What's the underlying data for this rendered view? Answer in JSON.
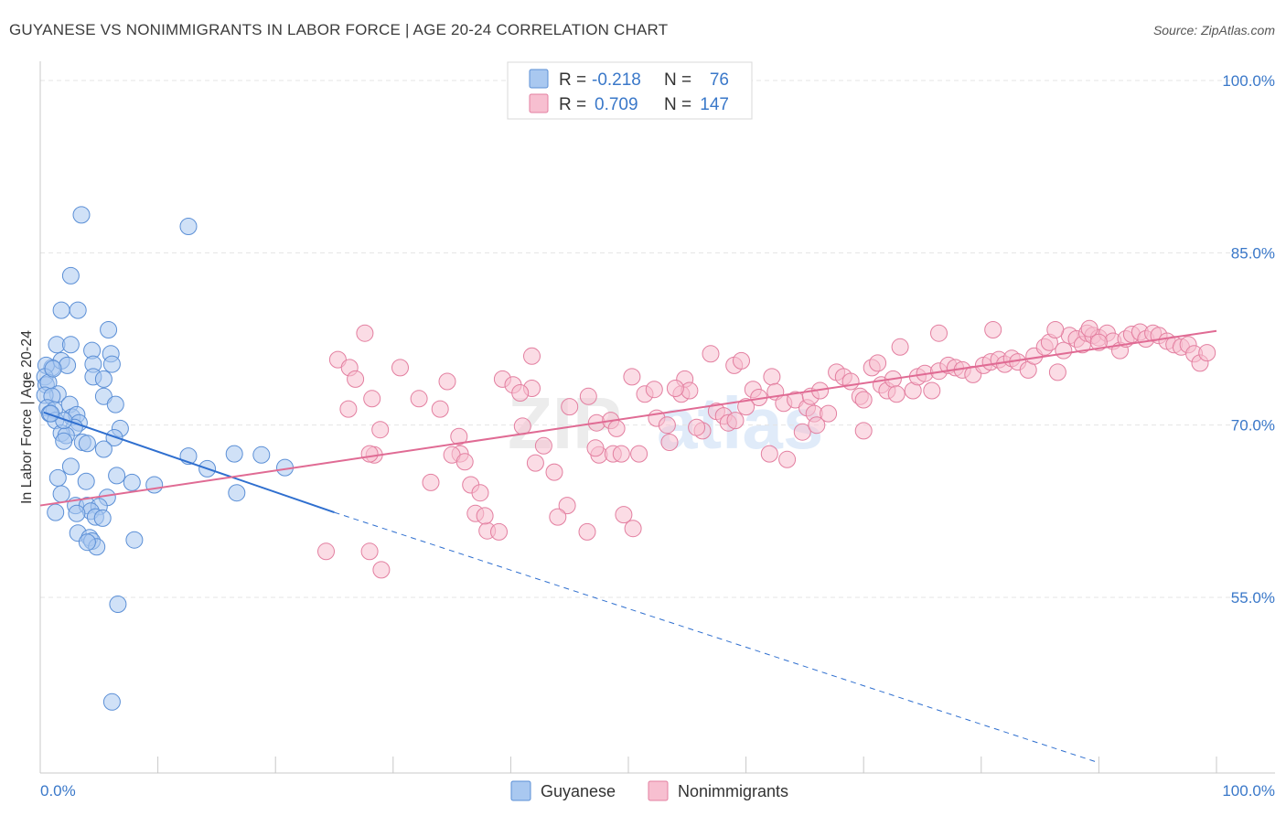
{
  "header": {
    "title": "GUYANESE VS NONIMMIGRANTS IN LABOR FORCE | AGE 20-24 CORRELATION CHART",
    "source": "Source: ZipAtlas.com"
  },
  "watermark": {
    "zip": "ZIP",
    "atlas": "atlas"
  },
  "stats": [
    {
      "r_label": "R =",
      "r": "-0.218",
      "n_label": "N =",
      "n": "76",
      "color": "#a9c8f0",
      "stroke": "#5b8fd6"
    },
    {
      "r_label": "R =",
      "r": "0.709",
      "n_label": "N =",
      "n": "147",
      "color": "#f7bfd0",
      "stroke": "#e37fa0"
    }
  ],
  "chart_data": {
    "type": "scatter",
    "title": "GUYANESE VS NONIMMIGRANTS IN LABOR FORCE | AGE 20-24 CORRELATION CHART",
    "xlabel": "",
    "ylabel": "In Labor Force | Age 20-24",
    "xlim": [
      0,
      100
    ],
    "ylim": [
      40,
      102
    ],
    "x_tick_labels": [
      "0.0%",
      "100.0%"
    ],
    "y_ticks": [
      55,
      70,
      85,
      100
    ],
    "y_tick_labels": [
      "55.0%",
      "70.0%",
      "85.0%",
      "100.0%"
    ],
    "grid": true,
    "legend_position": "bottom",
    "series": [
      {
        "name": "Guyanese",
        "color": "#a9c8f0",
        "stroke": "#5b8fd6",
        "line_color": "#2f6fcf",
        "trend": {
          "x1": 0.3,
          "y1": 71.1,
          "x2": 25.0,
          "y2": 62.4,
          "dash_to_x": 90.0,
          "dash_to_y": 40.6
        },
        "points": [
          [
            3.5,
            88.3
          ],
          [
            12.6,
            87.3
          ],
          [
            2.6,
            83.0
          ],
          [
            1.8,
            80.0
          ],
          [
            3.2,
            80.0
          ],
          [
            5.8,
            78.3
          ],
          [
            1.4,
            77.0
          ],
          [
            2.6,
            77.0
          ],
          [
            4.4,
            76.5
          ],
          [
            6.0,
            76.2
          ],
          [
            1.0,
            75.0
          ],
          [
            0.5,
            75.2
          ],
          [
            1.8,
            75.6
          ],
          [
            4.5,
            75.3
          ],
          [
            6.1,
            75.3
          ],
          [
            2.3,
            75.2
          ],
          [
            0.4,
            74.2
          ],
          [
            4.5,
            74.2
          ],
          [
            0.5,
            73.5
          ],
          [
            0.7,
            73.7
          ],
          [
            1.5,
            72.7
          ],
          [
            0.4,
            72.6
          ],
          [
            1.0,
            72.5
          ],
          [
            5.4,
            72.5
          ],
          [
            2.5,
            71.8
          ],
          [
            6.4,
            71.8
          ],
          [
            0.6,
            71.5
          ],
          [
            1.2,
            71.3
          ],
          [
            0.8,
            71.0
          ],
          [
            2.7,
            70.7
          ],
          [
            3.1,
            70.9
          ],
          [
            3.3,
            70.2
          ],
          [
            2.9,
            69.8
          ],
          [
            1.3,
            70.4
          ],
          [
            6.8,
            69.7
          ],
          [
            1.8,
            69.3
          ],
          [
            2.2,
            69.1
          ],
          [
            6.3,
            68.9
          ],
          [
            2.0,
            68.6
          ],
          [
            3.6,
            68.5
          ],
          [
            4.0,
            68.4
          ],
          [
            5.4,
            67.9
          ],
          [
            12.6,
            67.3
          ],
          [
            16.5,
            67.5
          ],
          [
            18.8,
            67.4
          ],
          [
            14.2,
            66.2
          ],
          [
            20.8,
            66.3
          ],
          [
            2.6,
            66.4
          ],
          [
            6.5,
            65.6
          ],
          [
            1.5,
            65.4
          ],
          [
            3.9,
            65.1
          ],
          [
            7.8,
            65.0
          ],
          [
            9.7,
            64.8
          ],
          [
            1.8,
            64.0
          ],
          [
            16.7,
            64.1
          ],
          [
            5.7,
            63.7
          ],
          [
            3.0,
            63.0
          ],
          [
            4.0,
            63.0
          ],
          [
            5.0,
            62.9
          ],
          [
            4.3,
            62.5
          ],
          [
            1.3,
            62.4
          ],
          [
            3.1,
            62.3
          ],
          [
            4.7,
            62.0
          ],
          [
            5.3,
            61.9
          ],
          [
            3.2,
            60.6
          ],
          [
            4.2,
            60.2
          ],
          [
            4.4,
            59.9
          ],
          [
            8.0,
            60.0
          ],
          [
            4.8,
            59.4
          ],
          [
            4.0,
            59.8
          ],
          [
            6.6,
            54.4
          ],
          [
            6.1,
            45.9
          ],
          [
            2.0,
            70.4
          ],
          [
            0.9,
            71.0
          ],
          [
            1.1,
            74.9
          ],
          [
            5.4,
            74.0
          ]
        ]
      },
      {
        "name": "Nonimmigrants",
        "color": "#f7bfd0",
        "stroke": "#e37fa0",
        "line_color": "#e06b94",
        "trend": {
          "x1": 0.0,
          "y1": 63.0,
          "x2": 100.0,
          "y2": 78.2
        },
        "points": [
          [
            28.2,
            72.3
          ],
          [
            25.3,
            75.7
          ],
          [
            26.3,
            75.0
          ],
          [
            26.8,
            74.0
          ],
          [
            28.9,
            69.6
          ],
          [
            26.2,
            71.4
          ],
          [
            28.4,
            67.4
          ],
          [
            28.0,
            67.5
          ],
          [
            28.0,
            59.0
          ],
          [
            29.0,
            57.4
          ],
          [
            24.3,
            59.0
          ],
          [
            27.6,
            78.0
          ],
          [
            30.6,
            75.0
          ],
          [
            34.6,
            73.8
          ],
          [
            35.6,
            69.0
          ],
          [
            35.7,
            67.5
          ],
          [
            35.0,
            67.4
          ],
          [
            36.1,
            66.8
          ],
          [
            33.2,
            65.0
          ],
          [
            36.6,
            64.8
          ],
          [
            37.4,
            64.1
          ],
          [
            37.0,
            62.3
          ],
          [
            38.0,
            60.8
          ],
          [
            37.8,
            62.1
          ],
          [
            41.8,
            73.2
          ],
          [
            39.3,
            74.0
          ],
          [
            40.2,
            73.5
          ],
          [
            40.8,
            72.8
          ],
          [
            41.0,
            69.9
          ],
          [
            42.8,
            68.2
          ],
          [
            42.1,
            66.7
          ],
          [
            43.7,
            65.9
          ],
          [
            44.8,
            63.0
          ],
          [
            44.0,
            62.0
          ],
          [
            41.8,
            76.0
          ],
          [
            46.6,
            72.5
          ],
          [
            47.3,
            70.2
          ],
          [
            47.5,
            67.4
          ],
          [
            48.7,
            67.5
          ],
          [
            49.4,
            67.5
          ],
          [
            47.2,
            68.0
          ],
          [
            48.5,
            70.4
          ],
          [
            49.0,
            69.7
          ],
          [
            50.3,
            74.2
          ],
          [
            50.9,
            67.5
          ],
          [
            50.4,
            61.0
          ],
          [
            49.6,
            62.2
          ],
          [
            51.4,
            72.7
          ],
          [
            52.4,
            70.6
          ],
          [
            53.3,
            70.0
          ],
          [
            52.2,
            73.1
          ],
          [
            54.5,
            72.7
          ],
          [
            54.8,
            74.0
          ],
          [
            55.2,
            73.0
          ],
          [
            56.3,
            69.5
          ],
          [
            55.8,
            69.8
          ],
          [
            57.5,
            71.2
          ],
          [
            58.1,
            70.8
          ],
          [
            58.5,
            70.2
          ],
          [
            59.1,
            70.4
          ],
          [
            59.0,
            75.2
          ],
          [
            59.6,
            75.6
          ],
          [
            60.6,
            73.1
          ],
          [
            61.1,
            72.4
          ],
          [
            62.2,
            74.2
          ],
          [
            62.5,
            72.9
          ],
          [
            63.2,
            71.9
          ],
          [
            64.2,
            72.2
          ],
          [
            64.8,
            69.4
          ],
          [
            65.2,
            71.5
          ],
          [
            65.8,
            71.0
          ],
          [
            65.5,
            72.5
          ],
          [
            66.3,
            73.0
          ],
          [
            67.7,
            74.6
          ],
          [
            68.3,
            74.2
          ],
          [
            68.9,
            73.8
          ],
          [
            69.7,
            72.5
          ],
          [
            70.0,
            72.2
          ],
          [
            70.7,
            75.0
          ],
          [
            71.2,
            75.4
          ],
          [
            71.5,
            73.5
          ],
          [
            72.0,
            73.0
          ],
          [
            72.5,
            74.0
          ],
          [
            72.8,
            72.7
          ],
          [
            74.2,
            73.0
          ],
          [
            74.6,
            74.2
          ],
          [
            75.2,
            74.5
          ],
          [
            75.8,
            73.0
          ],
          [
            76.4,
            74.7
          ],
          [
            77.2,
            75.2
          ],
          [
            77.8,
            75.0
          ],
          [
            78.4,
            74.8
          ],
          [
            79.3,
            74.4
          ],
          [
            80.2,
            75.2
          ],
          [
            80.8,
            75.5
          ],
          [
            81.5,
            75.7
          ],
          [
            82.0,
            75.3
          ],
          [
            82.6,
            75.8
          ],
          [
            83.1,
            75.5
          ],
          [
            84.0,
            74.8
          ],
          [
            84.5,
            76.0
          ],
          [
            85.4,
            76.8
          ],
          [
            85.8,
            77.2
          ],
          [
            86.5,
            74.6
          ],
          [
            87.0,
            76.5
          ],
          [
            87.5,
            77.8
          ],
          [
            88.1,
            77.5
          ],
          [
            88.6,
            77.0
          ],
          [
            89.0,
            78.0
          ],
          [
            89.5,
            77.8
          ],
          [
            90.0,
            77.6
          ],
          [
            90.7,
            78.0
          ],
          [
            91.2,
            77.3
          ],
          [
            91.8,
            76.5
          ],
          [
            92.3,
            77.5
          ],
          [
            92.8,
            77.9
          ],
          [
            93.5,
            78.1
          ],
          [
            94.0,
            77.5
          ],
          [
            94.6,
            78.0
          ],
          [
            95.1,
            77.8
          ],
          [
            95.8,
            77.3
          ],
          [
            96.4,
            77.0
          ],
          [
            97.0,
            76.8
          ],
          [
            97.6,
            77.0
          ],
          [
            98.1,
            76.2
          ],
          [
            98.6,
            75.4
          ],
          [
            99.2,
            76.3
          ],
          [
            73.1,
            76.8
          ],
          [
            76.4,
            78.0
          ],
          [
            81.0,
            78.3
          ],
          [
            86.3,
            78.3
          ],
          [
            89.2,
            78.4
          ],
          [
            90.0,
            77.2
          ],
          [
            67.0,
            71.0
          ],
          [
            62.0,
            67.5
          ],
          [
            63.5,
            67.0
          ],
          [
            70.0,
            69.5
          ],
          [
            57.0,
            76.2
          ],
          [
            54.0,
            73.2
          ],
          [
            32.2,
            72.3
          ],
          [
            34.0,
            71.4
          ],
          [
            45.0,
            71.6
          ],
          [
            39.0,
            60.7
          ],
          [
            46.5,
            60.7
          ],
          [
            53.5,
            68.5
          ],
          [
            60.0,
            71.6
          ],
          [
            66.0,
            70.0
          ]
        ]
      }
    ]
  }
}
